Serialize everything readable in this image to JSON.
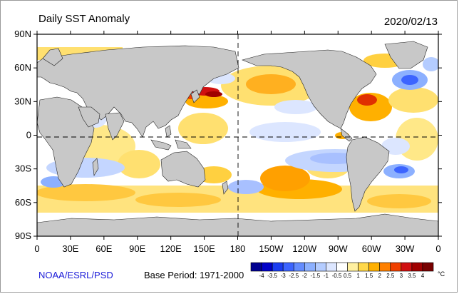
{
  "header": {
    "title": "Daily SST Anomaly",
    "date": "2020/02/13"
  },
  "footer": {
    "credit": "NOAA/ESRL/PSD",
    "base_period": "Base Period: 1971-2000"
  },
  "map": {
    "lat_ticks": [
      "90N",
      "60N",
      "30N",
      "0",
      "30S",
      "60S",
      "90S"
    ],
    "lon_ticks": [
      "0",
      "30E",
      "60E",
      "90E",
      "120E",
      "150E",
      "180",
      "150W",
      "120W",
      "90W",
      "60W",
      "30W",
      "0"
    ],
    "colors": {
      "land": "#c8c8c8",
      "ocean_neutral": "#ffffff",
      "dash": "#000000"
    }
  },
  "colorbar": {
    "labels": [
      "-4",
      "-3.5",
      "-3",
      "-2.5",
      "-2",
      "-1.5",
      "-1",
      "-0.5",
      "0.5",
      "1",
      "1.5",
      "2",
      "2.5",
      "3",
      "3.5",
      "4"
    ],
    "unit": "°C",
    "colors": [
      "#000090",
      "#0000c8",
      "#1a3cf0",
      "#3c64ff",
      "#648cff",
      "#8cb0ff",
      "#b4ccff",
      "#dce6ff",
      "#ffffff",
      "#fff0a0",
      "#ffd84a",
      "#ffb000",
      "#ff8000",
      "#f04000",
      "#d01010",
      "#a00000",
      "#780000"
    ]
  }
}
